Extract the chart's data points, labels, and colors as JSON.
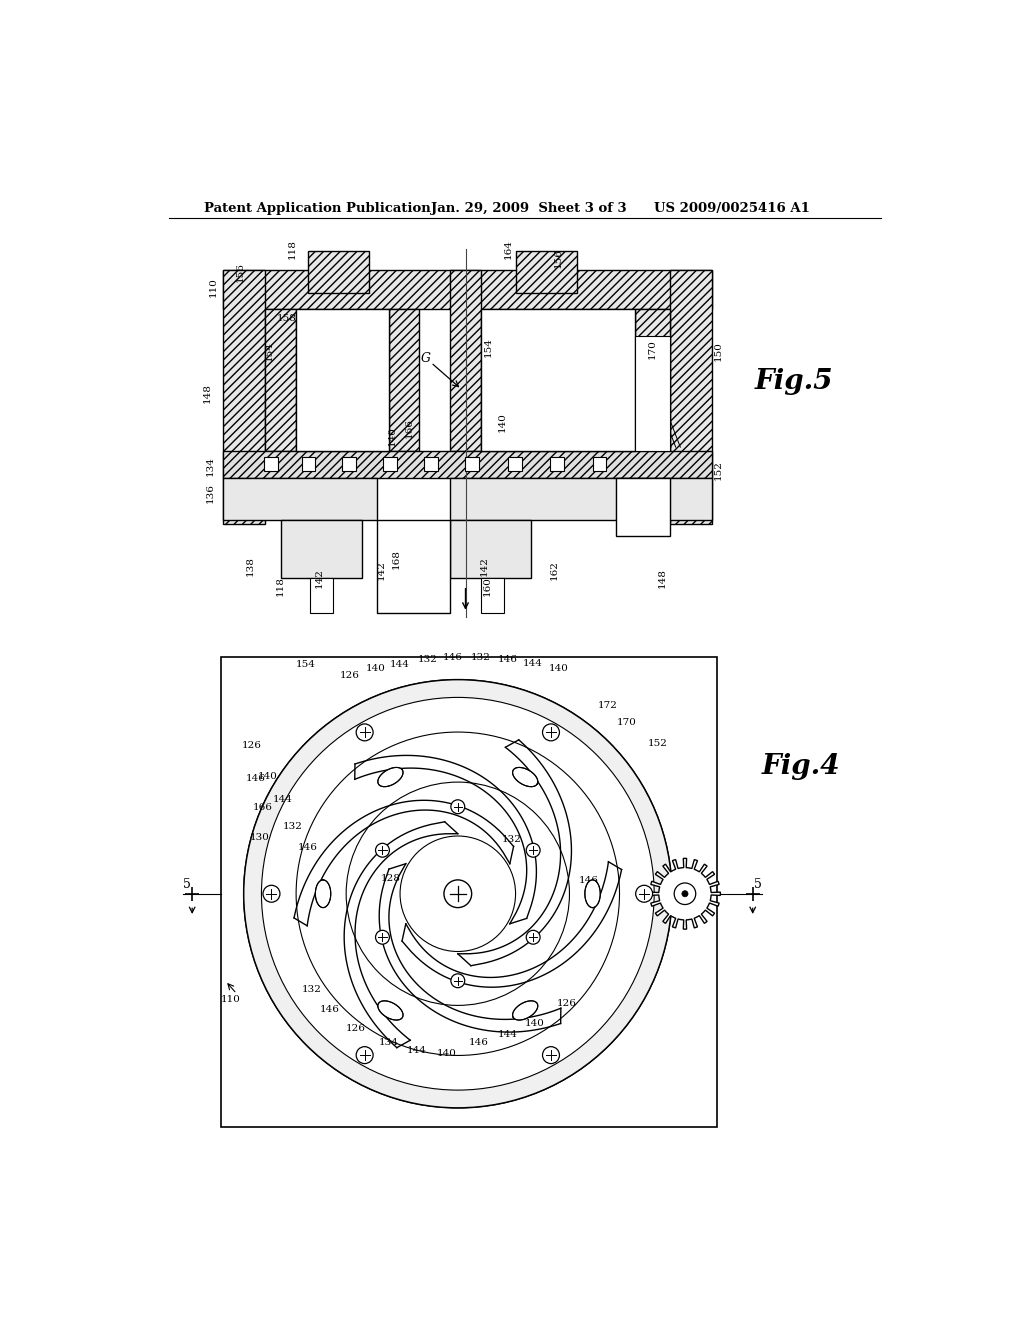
{
  "header_left": "Patent Application Publication",
  "header_mid": "Jan. 29, 2009  Sheet 3 of 3",
  "header_right": "US 2009/0025416 A1",
  "bg_color": "#ffffff",
  "fig5_label": "Fig.5",
  "fig4_label": "Fig.4",
  "line_color": "#000000"
}
